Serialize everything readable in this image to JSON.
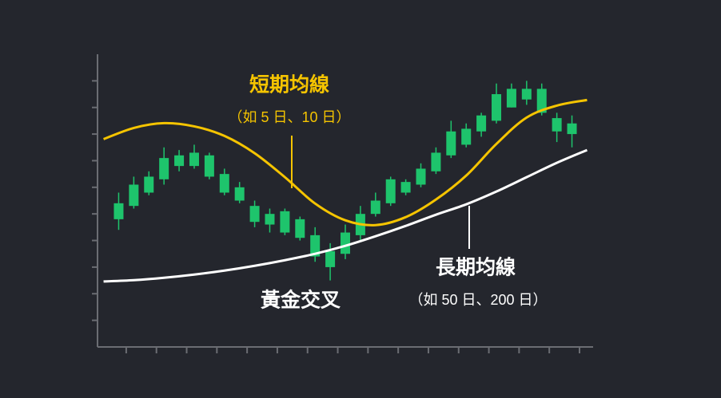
{
  "chart_data": {
    "type": "candlestick",
    "x": [
      1,
      2,
      3,
      4,
      5,
      6,
      7,
      8,
      9,
      10,
      11,
      12,
      13,
      14,
      15,
      16,
      17,
      18,
      19,
      20,
      21,
      22,
      23,
      24,
      25,
      26,
      27,
      28,
      29,
      30,
      31
    ],
    "open": [
      4.8,
      5.3,
      5.8,
      6.3,
      6.8,
      6.8,
      6.4,
      5.8,
      5.5,
      4.7,
      4.6,
      4.3,
      4.1,
      3.4,
      3.0,
      3.5,
      4.2,
      5.0,
      5.4,
      5.8,
      6.1,
      6.6,
      7.2,
      7.6,
      8.1,
      8.5,
      9.0,
      9.3,
      8.8,
      8.1,
      8.0
    ],
    "high": [
      5.8,
      6.4,
      6.6,
      7.5,
      7.4,
      7.6,
      7.3,
      6.7,
      6.2,
      5.5,
      5.2,
      5.2,
      4.9,
      4.5,
      3.9,
      4.6,
      5.3,
      5.8,
      6.4,
      6.3,
      6.9,
      7.5,
      8.5,
      8.4,
      8.8,
      9.9,
      9.9,
      10.0,
      9.9,
      8.8,
      8.7
    ],
    "low": [
      4.4,
      5.2,
      5.7,
      6.1,
      6.6,
      6.7,
      6.3,
      5.7,
      5.4,
      4.5,
      4.3,
      4.2,
      4.0,
      3.2,
      2.5,
      3.3,
      4.0,
      4.9,
      5.3,
      5.7,
      6.0,
      6.5,
      7.1,
      7.5,
      7.9,
      8.4,
      9.0,
      9.1,
      8.7,
      7.7,
      7.5
    ],
    "close": [
      5.4,
      6.1,
      6.4,
      7.1,
      7.2,
      7.3,
      7.2,
      6.5,
      6.0,
      5.3,
      5.0,
      5.1,
      4.8,
      4.2,
      3.6,
      4.3,
      5.0,
      5.5,
      6.3,
      6.2,
      6.7,
      7.3,
      8.1,
      8.2,
      8.7,
      9.5,
      9.7,
      9.7,
      9.7,
      8.6,
      8.4
    ],
    "color": "#1ec46c",
    "lines": [
      {
        "name": "短期均線",
        "color": "#f5c400",
        "x": [
          0,
          2,
          4,
          6,
          8,
          10,
          12,
          14,
          16,
          18,
          20,
          22,
          24,
          26,
          28,
          30,
          32
        ],
        "values": [
          7.81,
          8.23,
          8.41,
          8.29,
          7.93,
          7.28,
          6.38,
          5.39,
          4.76,
          4.58,
          4.88,
          5.54,
          6.44,
          7.63,
          8.62,
          9.07,
          9.28
        ]
      },
      {
        "name": "長期均線",
        "color": "#ffffff",
        "x": [
          0,
          2,
          4,
          6,
          8,
          10,
          12,
          14,
          16,
          18,
          20,
          22,
          24,
          26,
          28,
          30,
          32
        ],
        "values": [
          2.46,
          2.51,
          2.6,
          2.72,
          2.87,
          3.05,
          3.26,
          3.5,
          3.8,
          4.16,
          4.55,
          4.97,
          5.36,
          5.84,
          6.38,
          6.92,
          7.4
        ]
      }
    ],
    "annotations": [
      "（如 5 日、10 日）",
      "（如 50 日、200 日）",
      "黃金交叉"
    ],
    "xlim": [
      -0.4,
      32.4
    ],
    "ylim": [
      0,
      11
    ],
    "xticks": [
      1.5,
      3.5,
      5.5,
      7.5,
      9.5,
      11.5,
      13.5,
      15.5,
      17.5,
      19.5,
      21.5,
      23.5,
      25.5,
      27.5,
      29.5,
      31.5
    ],
    "yticks": [
      1,
      2,
      3,
      4,
      5,
      6,
      7,
      8,
      9,
      10
    ]
  }
}
